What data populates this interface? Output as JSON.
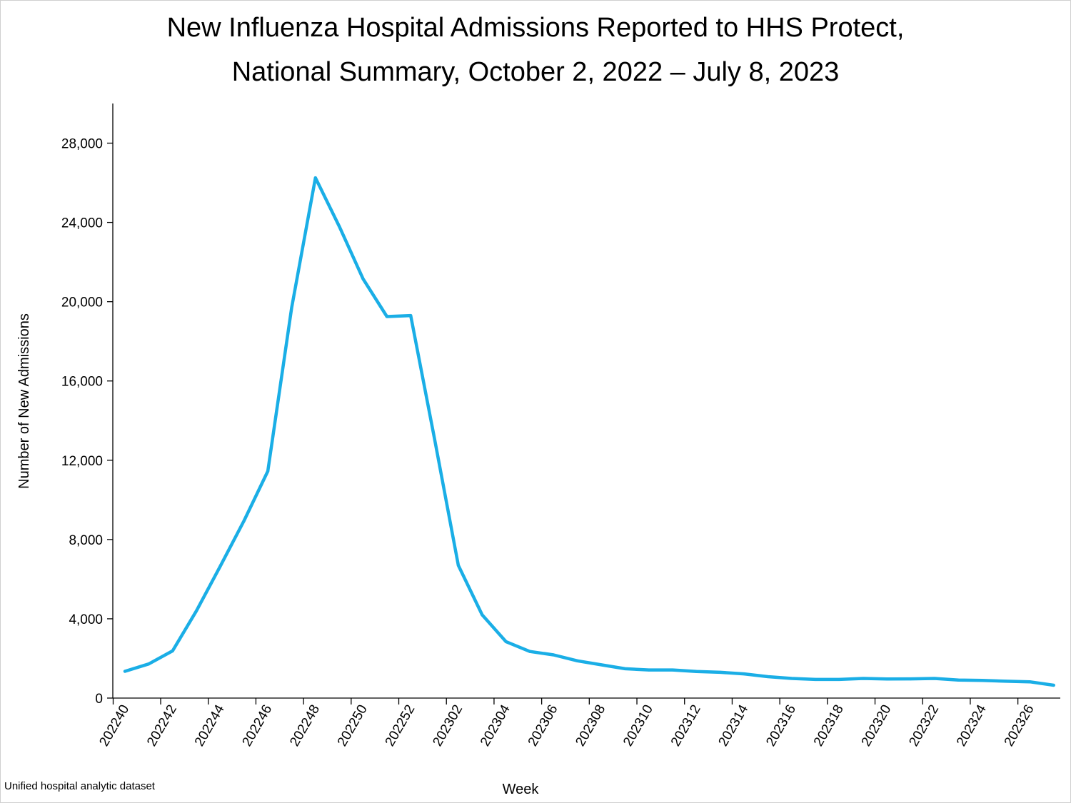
{
  "chart_data": {
    "type": "line",
    "title": "New Influenza Hospital Admissions Reported to HHS Protect,",
    "subtitle": "National Summary, October 2, 2022 – July 8, 2023",
    "xlabel": "Week",
    "ylabel": "Number of New Admissions",
    "source_note": "Unified hospital analytic dataset",
    "ylim": [
      0,
      30000
    ],
    "y_ticks": [
      0,
      4000,
      8000,
      12000,
      16000,
      20000,
      24000,
      28000
    ],
    "y_tick_labels": [
      "0",
      "4,000",
      "8,000",
      "12,000",
      "16,000",
      "20,000",
      "24,000",
      "28,000"
    ],
    "x_tick_labels": [
      "202240",
      "202242",
      "202244",
      "202246",
      "202248",
      "202250",
      "202252",
      "202302",
      "202304",
      "202306",
      "202308",
      "202310",
      "202312",
      "202314",
      "202316",
      "202318",
      "202320",
      "202322",
      "202324",
      "202326"
    ],
    "x": [
      "202240",
      "202241",
      "202242",
      "202243",
      "202244",
      "202245",
      "202246",
      "202247",
      "202248",
      "202249",
      "202250",
      "202251",
      "202252",
      "202301",
      "202302",
      "202303",
      "202304",
      "202305",
      "202306",
      "202307",
      "202308",
      "202309",
      "202310",
      "202311",
      "202312",
      "202313",
      "202314",
      "202315",
      "202316",
      "202317",
      "202318",
      "202319",
      "202320",
      "202321",
      "202322",
      "202323",
      "202324",
      "202325",
      "202326",
      "202327"
    ],
    "series": [
      {
        "color": "#1aaee6",
        "values": [
          1350,
          1720,
          2380,
          4400,
          6650,
          8950,
          11450,
          19700,
          26250,
          23800,
          21150,
          19250,
          19300,
          13100,
          6700,
          4200,
          2850,
          2350,
          2180,
          1880,
          1680,
          1480,
          1420,
          1420,
          1340,
          1300,
          1220,
          1080,
          990,
          940,
          940,
          990,
          960,
          970,
          990,
          910,
          890,
          850,
          820,
          650
        ]
      }
    ],
    "grid": false,
    "legend": "none"
  }
}
